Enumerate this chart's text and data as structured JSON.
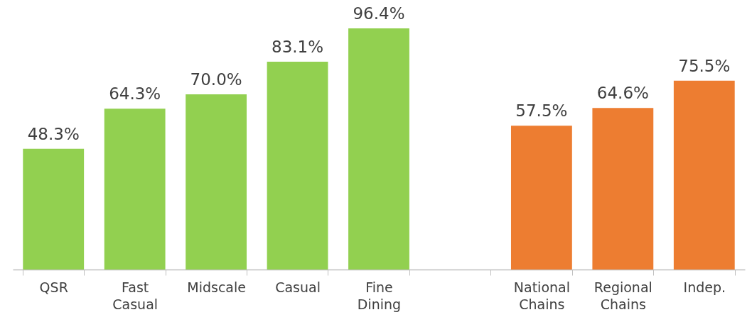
{
  "chart_data": {
    "type": "bar",
    "categories": [
      "QSR",
      "Fast Casual",
      "Midscale",
      "Casual",
      "Fine Dining",
      null,
      "National Chains",
      "Regional Chains",
      "Indep."
    ],
    "values": [
      48.3,
      64.3,
      70.0,
      83.1,
      96.4,
      null,
      57.5,
      64.6,
      75.5
    ],
    "colors": [
      "#92d050",
      "#92d050",
      "#92d050",
      "#92d050",
      "#92d050",
      null,
      "#ed7d31",
      "#ed7d31",
      "#ed7d31"
    ],
    "value_labels": [
      "48.3%",
      "64.3%",
      "70.0%",
      "83.1%",
      "96.4%",
      null,
      "57.5%",
      "64.6%",
      "75.5%"
    ],
    "grid": false
  }
}
